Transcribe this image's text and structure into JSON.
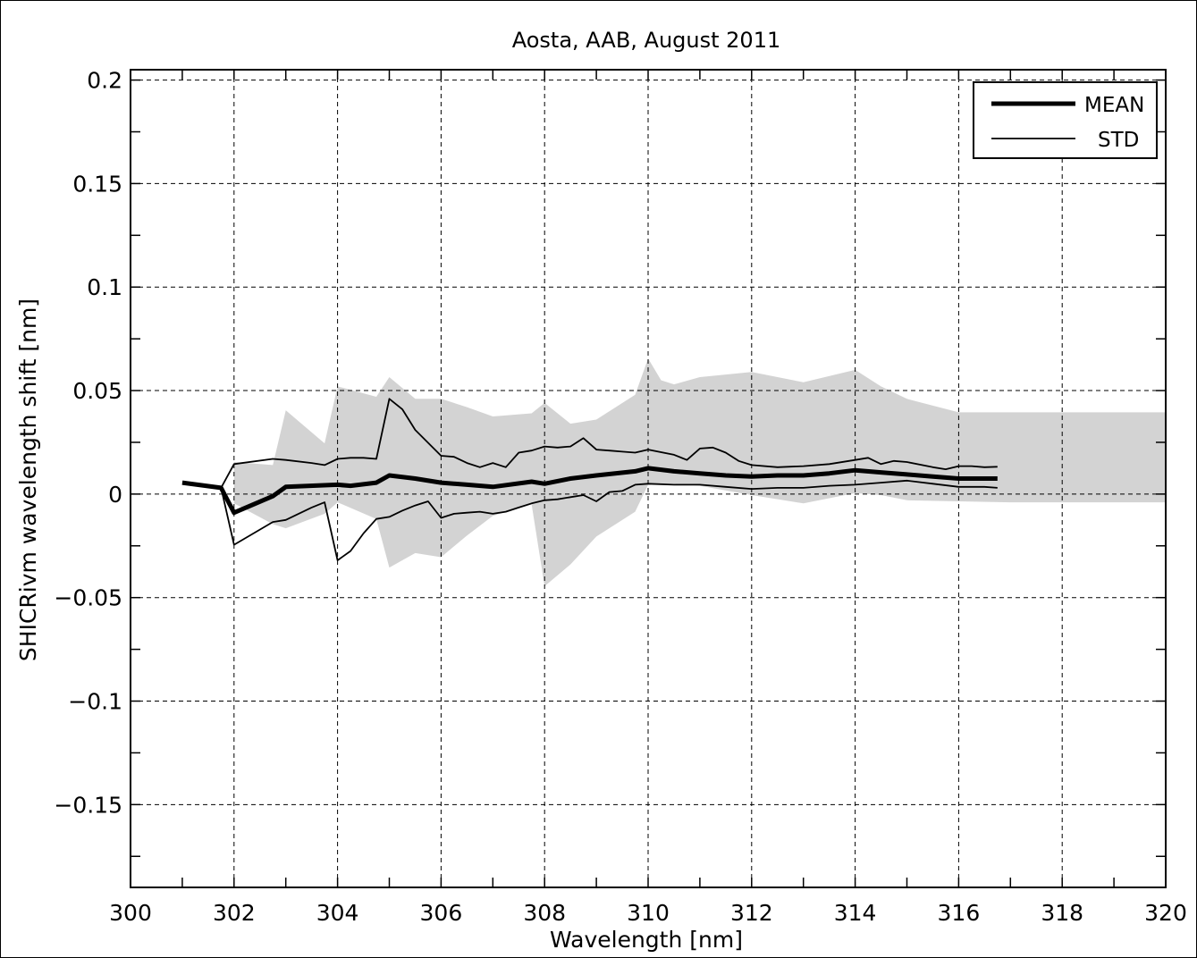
{
  "chart_data": {
    "type": "line",
    "title": "Aosta, AAB, August 2011",
    "xlabel": "Wavelength [nm]",
    "ylabel": "SHICRivm wavelength shift [nm]",
    "xlim": [
      300,
      320
    ],
    "ylim": [
      -0.19,
      0.205
    ],
    "xticks": [
      300,
      302,
      304,
      306,
      308,
      310,
      312,
      314,
      316,
      318,
      320
    ],
    "xtick_labels": [
      "300",
      "302",
      "304",
      "306",
      "308",
      "310",
      "312",
      "314",
      "316",
      "318",
      "320"
    ],
    "yticks": [
      0.2,
      0.15,
      0.1,
      0.05,
      0,
      -0.05,
      -0.1,
      -0.15
    ],
    "ytick_labels": [
      "0.2",
      "0.15",
      "0.1",
      "0.05",
      "0",
      "−0.05",
      "−0.1",
      "−0.15"
    ],
    "grid": true,
    "legend_position": "top-right",
    "band_color": "#d3d3d3",
    "line_color": "#000000",
    "series": [
      {
        "name": "MEAN",
        "style": "thick",
        "x": [
          301.0,
          301.75,
          302.0,
          302.75,
          303.0,
          304.0,
          304.25,
          304.75,
          305.0,
          305.5,
          306.0,
          306.5,
          307.0,
          307.75,
          308.0,
          308.5,
          309.0,
          309.75,
          310.0,
          310.5,
          311.0,
          311.5,
          312.0,
          312.5,
          313.0,
          313.5,
          314.0,
          314.5,
          315.0,
          315.5,
          316.0,
          316.75
        ],
        "y": [
          0.0055,
          0.003,
          -0.009,
          -0.001,
          0.0035,
          0.0045,
          0.004,
          0.0055,
          0.009,
          0.0075,
          0.0055,
          0.0045,
          0.0035,
          0.006,
          0.005,
          0.0075,
          0.009,
          0.011,
          0.0125,
          0.011,
          0.01,
          0.009,
          0.0085,
          0.009,
          0.009,
          0.01,
          0.0115,
          0.0105,
          0.0095,
          0.0085,
          0.0075,
          0.0075
        ]
      },
      {
        "name": "STD",
        "style": "thin",
        "x": [
          301.75,
          302.0,
          302.75,
          303.0,
          303.5,
          303.75,
          304.0,
          304.25,
          304.5,
          304.75,
          305.0,
          305.25,
          305.5,
          306.0,
          306.25,
          306.5,
          306.75,
          307.0,
          307.25,
          307.5,
          307.75,
          308.0,
          308.25,
          308.5,
          308.75,
          309.0,
          309.25,
          309.5,
          309.75,
          310.0,
          310.5,
          310.75,
          311.0,
          311.25,
          311.5,
          311.75,
          312.0,
          312.5,
          313.0,
          313.5,
          314.0,
          314.25,
          314.5,
          314.75,
          315.0,
          315.5,
          315.75,
          316.0,
          316.25,
          316.5,
          316.75
        ],
        "y": [
          0.003,
          0.0145,
          0.017,
          0.0165,
          0.015,
          0.014,
          0.017,
          0.0175,
          0.0175,
          0.017,
          0.046,
          0.041,
          0.031,
          0.0185,
          0.018,
          0.015,
          0.013,
          0.015,
          0.013,
          0.02,
          0.021,
          0.023,
          0.0225,
          0.023,
          0.027,
          0.0215,
          0.021,
          0.0205,
          0.02,
          0.0215,
          0.019,
          0.0165,
          0.022,
          0.0225,
          0.02,
          0.016,
          0.014,
          0.013,
          0.0135,
          0.0145,
          0.0165,
          0.0175,
          0.0145,
          0.016,
          0.0155,
          0.013,
          0.012,
          0.0135,
          0.0135,
          0.013,
          0.0132
        ]
      },
      {
        "name": "",
        "style": "thin",
        "x": [
          301.75,
          302.0,
          302.75,
          303.0,
          303.5,
          303.75,
          304.0,
          304.25,
          304.5,
          304.75,
          305.0,
          305.25,
          305.5,
          305.75,
          306.0,
          306.25,
          306.5,
          306.75,
          307.0,
          307.25,
          307.5,
          307.75,
          308.0,
          308.25,
          308.5,
          308.75,
          309.0,
          309.25,
          309.5,
          309.75,
          310.0,
          310.5,
          311.0,
          311.5,
          312.0,
          312.5,
          313.0,
          313.5,
          314.0,
          314.5,
          315.0,
          315.5,
          316.0,
          316.5,
          316.75
        ],
        "y": [
          0.003,
          -0.0245,
          -0.0135,
          -0.0125,
          -0.0065,
          -0.004,
          -0.032,
          -0.0275,
          -0.019,
          -0.012,
          -0.011,
          -0.008,
          -0.0055,
          -0.0035,
          -0.0115,
          -0.0095,
          -0.009,
          -0.0085,
          -0.0095,
          -0.0085,
          -0.0065,
          -0.0045,
          -0.003,
          -0.0025,
          -0.0015,
          -0.0005,
          -0.0035,
          0.001,
          0.0015,
          0.0045,
          0.005,
          0.0045,
          0.0045,
          0.0035,
          0.0025,
          0.003,
          0.003,
          0.004,
          0.0045,
          0.0055,
          0.0065,
          0.005,
          0.0035,
          0.0035,
          0.003
        ]
      }
    ],
    "band": {
      "x": [
        302.0,
        302.75,
        303.0,
        303.75,
        304.0,
        304.75,
        305.0,
        305.5,
        306.0,
        306.5,
        307.0,
        307.75,
        308.0,
        308.5,
        309.0,
        309.75,
        310.0,
        310.25,
        310.5,
        311.0,
        312.0,
        313.0,
        314.0,
        314.5,
        315.0,
        316.0,
        317.0,
        320.0
      ],
      "upper": [
        0.0155,
        0.014,
        0.0405,
        0.0245,
        0.052,
        0.047,
        0.0565,
        0.046,
        0.046,
        0.042,
        0.0375,
        0.039,
        0.044,
        0.034,
        0.036,
        0.048,
        0.0655,
        0.055,
        0.053,
        0.0565,
        0.059,
        0.054,
        0.06,
        0.052,
        0.046,
        0.0395,
        0.0395,
        0.0395
      ],
      "lower": [
        -0.0045,
        -0.0145,
        -0.0165,
        -0.0095,
        -0.004,
        -0.012,
        -0.0355,
        -0.0285,
        -0.0305,
        -0.02,
        -0.0105,
        -0.005,
        -0.0445,
        -0.034,
        -0.0205,
        -0.0085,
        0.0045,
        0.005,
        0.005,
        0.004,
        -0.0005,
        -0.0045,
        0.0005,
        -0.0005,
        -0.003,
        -0.0035,
        -0.004,
        -0.004
      ]
    }
  }
}
